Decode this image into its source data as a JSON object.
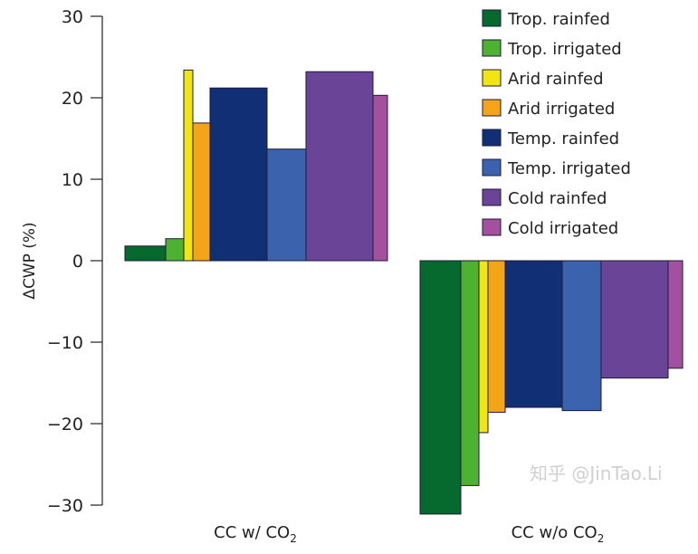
{
  "chart_data": {
    "type": "bar",
    "title": "",
    "xlabel": "",
    "ylabel": "ΔCWP (%)",
    "ylim": [
      -30,
      30
    ],
    "yticks": [
      30,
      20,
      10,
      0,
      -10,
      -20,
      -30
    ],
    "ytick_labels": [
      "30",
      "20",
      "10",
      "0",
      "−10",
      "−20",
      "−30"
    ],
    "grid": false,
    "legend_position": "top-right",
    "categories": [
      {
        "label": "CC w/ CO",
        "sub": "2"
      },
      {
        "label": "CC w/o CO",
        "sub": "2"
      }
    ],
    "series": [
      {
        "name": "Trop. rainfed",
        "color": "#066a2f",
        "values": [
          1.8,
          -31.1
        ]
      },
      {
        "name": "Trop. irrigated",
        "color": "#4db232",
        "values": [
          2.7,
          -27.6
        ]
      },
      {
        "name": "Arid rainfed",
        "color": "#f1e60f",
        "values": [
          23.4,
          -21.1
        ]
      },
      {
        "name": "Arid irrigated",
        "color": "#f3a517",
        "values": [
          16.9,
          -18.6
        ]
      },
      {
        "name": "Temp. rainfed",
        "color": "#112f75",
        "values": [
          21.2,
          -18.0
        ]
      },
      {
        "name": "Temp. irrigated",
        "color": "#3b63ad",
        "values": [
          13.7,
          -18.4
        ]
      },
      {
        "name": "Cold rainfed",
        "color": "#6a4496",
        "values": [
          23.2,
          -14.4
        ]
      },
      {
        "name": "Cold irrigated",
        "color": "#a3519e",
        "values": [
          20.3,
          -13.2
        ]
      }
    ]
  },
  "watermark": "知乎 @JinTao.Li"
}
